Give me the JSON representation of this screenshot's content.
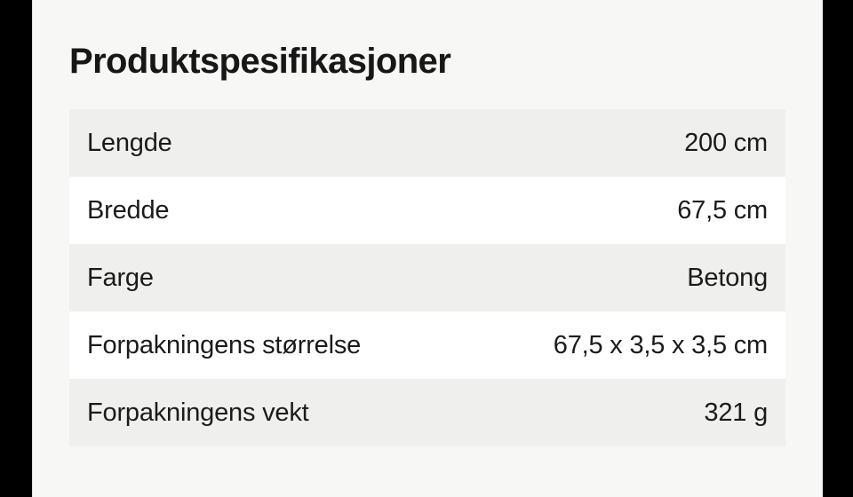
{
  "page": {
    "title": "Produktspesifikasjoner"
  },
  "colors": {
    "letterbox": "#000000",
    "page_background": "#f7f7f6",
    "row_alt_background": "#efefee",
    "row_background": "#ffffff",
    "text": "#1b1b1b",
    "title_text": "#171717"
  },
  "table": {
    "rows": [
      {
        "label": "Lengde",
        "value": "200 cm"
      },
      {
        "label": "Bredde",
        "value": "67,5 cm"
      },
      {
        "label": "Farge",
        "value": "Betong"
      },
      {
        "label": "Forpakningens størrelse",
        "value": "67,5 x 3,5 x 3,5 cm"
      },
      {
        "label": "Forpakningens vekt",
        "value": "321 g"
      }
    ]
  }
}
